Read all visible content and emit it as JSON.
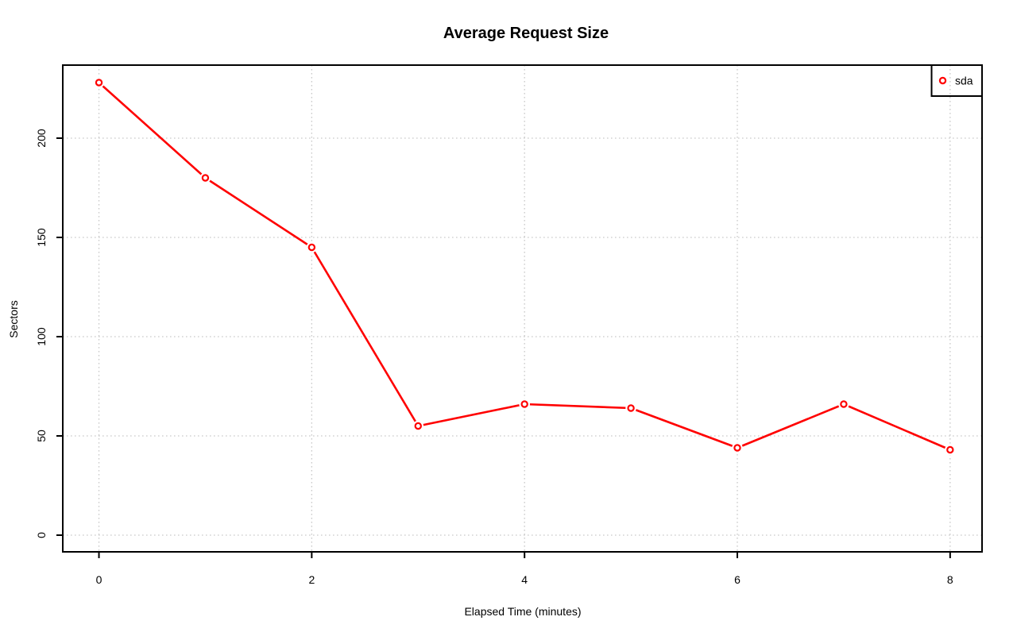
{
  "figure": {
    "background": "#ffffff",
    "axis_color": "#000000",
    "text_color": "#000000"
  },
  "chart_data": {
    "type": "line",
    "title": "Average Request Size",
    "xlabel": "Elapsed Time (minutes)",
    "ylabel": "Sectors",
    "x": [
      0,
      1,
      2,
      3,
      4,
      5,
      6,
      7,
      8
    ],
    "series": [
      {
        "name": "sda",
        "color": "#ff0000",
        "marker": "open-circle",
        "values": [
          228,
          180,
          145,
          55,
          66,
          64,
          44,
          66,
          43
        ]
      }
    ],
    "x_ticks": [
      0,
      2,
      4,
      6,
      8
    ],
    "y_ticks": [
      0,
      50,
      100,
      150,
      200
    ],
    "xlim": [
      -0.34,
      8.3
    ],
    "ylim": [
      -8.4,
      236.8
    ],
    "grid": {
      "on": true,
      "style": "dotted",
      "color": "#c9c9c9"
    },
    "legend": {
      "position": "topright",
      "entries": [
        "sda"
      ],
      "border_color": "#000000",
      "background": "transparent"
    }
  }
}
